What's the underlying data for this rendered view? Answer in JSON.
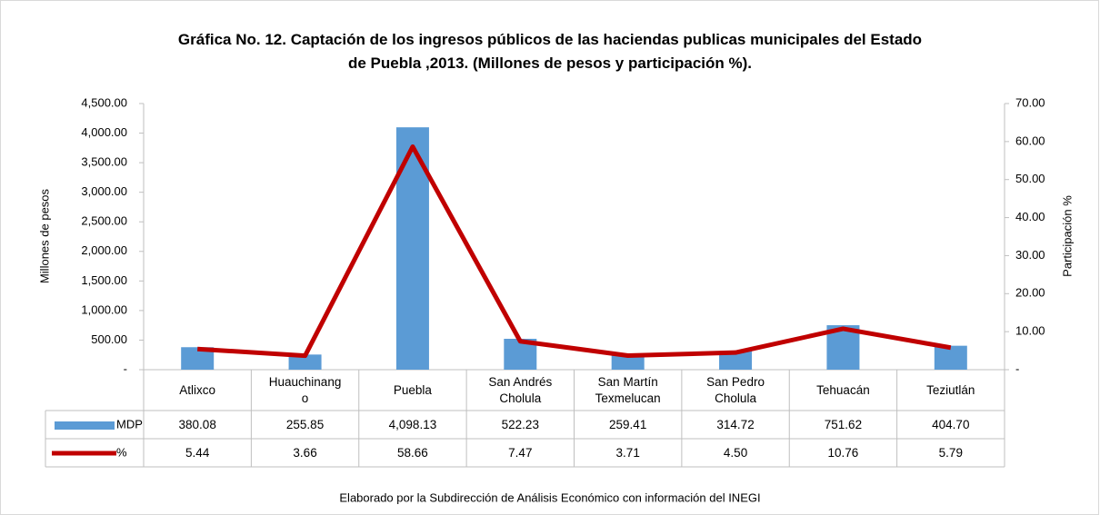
{
  "chart_data": {
    "type": "bar_line",
    "title": "Gráfica No. 12. Captación de los ingresos públicos de las haciendas publicas municipales del Estado de Puebla ,2013. (Millones de pesos y participación %).",
    "ylabel": "Millones de pesos",
    "y2label": "Participación %",
    "source": "Elaborado por la Subdirección de Análisis Económico con información del INEGI",
    "categories": [
      "Atlixco",
      "Huauchinango",
      "Puebla",
      "San Andrés Cholula",
      "San Martín Texmelucan",
      "San Pedro Cholula",
      "Tehuacán",
      "Teziutlán"
    ],
    "series": [
      {
        "name": "MDP",
        "type": "bar",
        "color": "#5b9bd5",
        "values": [
          380.08,
          255.85,
          4098.13,
          522.23,
          259.41,
          314.72,
          751.62,
          404.7
        ],
        "value_labels": [
          "380.08",
          "255.85",
          "4,098.13",
          "522.23",
          "259.41",
          "314.72",
          "751.62",
          "404.70"
        ]
      },
      {
        "name": "%",
        "type": "line",
        "axis": "y2",
        "color": "#c00000",
        "values": [
          5.44,
          3.66,
          58.66,
          7.47,
          3.71,
          4.5,
          10.76,
          5.79
        ],
        "value_labels": [
          "5.44",
          "3.66",
          "58.66",
          "7.47",
          "3.71",
          "4.50",
          "10.76",
          "5.79"
        ]
      }
    ],
    "ylim": [
      0,
      4500
    ],
    "yticks": [
      {
        "value": 0,
        "label": "-"
      },
      {
        "value": 500,
        "label": "500.00"
      },
      {
        "value": 1000,
        "label": "1,000.00"
      },
      {
        "value": 1500,
        "label": "1,500.00"
      },
      {
        "value": 2000,
        "label": "2,000.00"
      },
      {
        "value": 2500,
        "label": "2,500.00"
      },
      {
        "value": 3000,
        "label": "3,000.00"
      },
      {
        "value": 3500,
        "label": "3,500.00"
      },
      {
        "value": 4000,
        "label": "4,000.00"
      },
      {
        "value": 4500,
        "label": "4,500.00"
      }
    ],
    "y2lim": [
      0,
      70
    ],
    "y2ticks": [
      {
        "value": 0,
        "label": "-"
      },
      {
        "value": 10,
        "label": "10.00"
      },
      {
        "value": 20,
        "label": "20.00"
      },
      {
        "value": 30,
        "label": "30.00"
      },
      {
        "value": 40,
        "label": "40.00"
      },
      {
        "value": 50,
        "label": "50.00"
      },
      {
        "value": 60,
        "label": "60.00"
      },
      {
        "value": 70,
        "label": "70.00"
      }
    ]
  }
}
